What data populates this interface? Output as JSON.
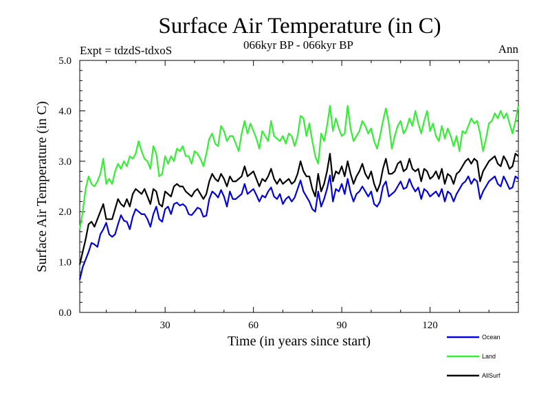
{
  "chart_data": {
    "type": "line",
    "title": "Surface Air Temperature (in C)",
    "subtitle": "066kyr BP - 066kyr BP",
    "expt_label": "Expt = tdzdS-tdxoS",
    "season": "Ann",
    "xlabel": "Time (in years since start)",
    "ylabel": "Surface Air Temperature (in C)",
    "xlim": [
      1,
      150
    ],
    "ylim": [
      0,
      5
    ],
    "xticks": [
      30,
      60,
      90,
      120
    ],
    "yticks": [
      0.0,
      1.0,
      2.0,
      3.0,
      4.0,
      5.0
    ],
    "ytick_labels": [
      "0.0",
      "1.0",
      "2.0",
      "3.0",
      "4.0",
      "5.0"
    ],
    "legend_position": "bottom-right",
    "series": [
      {
        "name": "Ocean",
        "color": "#0000dd",
        "values": [
          0.65,
          0.9,
          1.05,
          1.2,
          1.38,
          1.35,
          1.3,
          1.55,
          1.65,
          1.78,
          1.55,
          1.5,
          1.55,
          1.75,
          1.93,
          1.82,
          1.8,
          1.65,
          1.9,
          2.05,
          2.0,
          1.95,
          1.95,
          1.85,
          1.7,
          1.95,
          2.1,
          1.85,
          1.8,
          2.05,
          2.1,
          1.95,
          2.15,
          2.18,
          2.12,
          2.15,
          2.1,
          1.95,
          1.93,
          2.0,
          2.08,
          2.05,
          1.9,
          1.92,
          2.25,
          2.4,
          2.35,
          2.28,
          2.43,
          2.3,
          2.1,
          2.4,
          2.25,
          2.25,
          2.3,
          2.35,
          2.55,
          2.35,
          2.4,
          2.45,
          2.33,
          2.2,
          2.32,
          2.28,
          2.4,
          2.48,
          2.3,
          2.25,
          2.35,
          2.15,
          2.25,
          2.3,
          2.2,
          2.28,
          2.45,
          2.62,
          2.4,
          2.3,
          2.2,
          2.05,
          2.0,
          2.4,
          2.1,
          2.25,
          2.45,
          2.72,
          2.2,
          2.45,
          2.4,
          2.55,
          2.35,
          2.65,
          2.38,
          2.2,
          2.35,
          2.4,
          2.5,
          2.4,
          2.3,
          2.4,
          2.15,
          2.1,
          2.2,
          2.5,
          2.6,
          2.3,
          2.35,
          2.4,
          2.5,
          2.6,
          2.45,
          2.48,
          2.65,
          2.5,
          2.4,
          2.48,
          2.25,
          2.45,
          2.4,
          2.3,
          2.35,
          2.4,
          2.3,
          2.45,
          2.2,
          2.4,
          2.35,
          2.2,
          2.35,
          2.45,
          2.55,
          2.6,
          2.7,
          2.55,
          2.65,
          2.6,
          2.25,
          2.4,
          2.5,
          2.6,
          2.65,
          2.7,
          2.55,
          2.5,
          2.7,
          2.58,
          2.45,
          2.48,
          2.7,
          2.65
        ]
      },
      {
        "name": "Land",
        "color": "#33ee33",
        "values": [
          1.65,
          2.0,
          2.45,
          2.7,
          2.55,
          2.5,
          2.6,
          2.75,
          3.05,
          2.55,
          2.65,
          2.55,
          2.8,
          2.95,
          2.85,
          3.0,
          2.9,
          3.1,
          3.05,
          3.15,
          3.4,
          3.2,
          3.05,
          3.0,
          2.85,
          3.3,
          3.15,
          2.7,
          2.75,
          3.1,
          2.95,
          3.1,
          3.0,
          3.25,
          3.2,
          3.3,
          3.1,
          3.1,
          2.95,
          3.2,
          3.15,
          3.05,
          2.9,
          3.15,
          3.45,
          3.55,
          3.35,
          3.3,
          3.7,
          3.6,
          3.4,
          3.5,
          3.5,
          3.35,
          3.2,
          3.55,
          3.8,
          3.55,
          3.75,
          3.6,
          3.45,
          3.25,
          3.6,
          3.5,
          3.4,
          3.8,
          3.5,
          3.45,
          3.4,
          3.5,
          3.35,
          3.55,
          3.5,
          3.3,
          3.5,
          3.9,
          3.85,
          3.5,
          3.75,
          3.4,
          3.1,
          2.95,
          3.55,
          3.4,
          3.7,
          4.1,
          3.6,
          3.85,
          3.65,
          3.5,
          3.55,
          4.1,
          3.65,
          3.4,
          3.5,
          3.6,
          3.8,
          3.7,
          3.55,
          3.65,
          3.4,
          3.25,
          3.5,
          3.8,
          4.05,
          3.75,
          3.25,
          3.5,
          3.7,
          3.8,
          3.55,
          3.65,
          3.85,
          3.7,
          4.0,
          3.75,
          3.55,
          3.8,
          4.0,
          3.6,
          3.75,
          3.5,
          3.4,
          3.7,
          3.45,
          3.65,
          3.5,
          3.3,
          3.5,
          3.2,
          3.6,
          3.55,
          3.7,
          3.85,
          3.75,
          3.8,
          3.55,
          3.2,
          3.45,
          3.75,
          3.8,
          3.95,
          3.85,
          4.0,
          3.85,
          3.95,
          3.75,
          3.55,
          3.8,
          4.1
        ]
      },
      {
        "name": "AllSurf",
        "color": "#000000",
        "values": [
          0.95,
          1.2,
          1.45,
          1.75,
          1.8,
          1.7,
          1.85,
          2.0,
          2.15,
          1.85,
          1.85,
          1.85,
          2.05,
          2.25,
          2.15,
          2.1,
          2.25,
          2.1,
          2.35,
          2.45,
          2.4,
          2.35,
          2.45,
          2.3,
          2.15,
          2.45,
          2.4,
          2.15,
          2.1,
          2.4,
          2.35,
          2.3,
          2.5,
          2.55,
          2.5,
          2.5,
          2.4,
          2.35,
          2.3,
          2.4,
          2.45,
          2.35,
          2.25,
          2.35,
          2.6,
          2.75,
          2.65,
          2.6,
          2.75,
          2.65,
          2.5,
          2.7,
          2.6,
          2.6,
          2.65,
          2.7,
          2.9,
          2.7,
          2.75,
          2.8,
          2.65,
          2.5,
          2.65,
          2.6,
          2.7,
          2.85,
          2.65,
          2.55,
          2.65,
          2.55,
          2.6,
          2.65,
          2.55,
          2.6,
          2.75,
          3.0,
          2.8,
          2.7,
          2.7,
          2.45,
          2.3,
          2.75,
          2.4,
          2.55,
          2.8,
          3.15,
          2.6,
          2.8,
          2.75,
          2.9,
          2.7,
          3.0,
          2.75,
          2.55,
          2.7,
          2.8,
          2.95,
          2.75,
          2.65,
          2.8,
          2.55,
          2.4,
          2.55,
          2.85,
          3.05,
          2.75,
          2.75,
          2.8,
          2.95,
          3.0,
          2.8,
          2.85,
          3.05,
          2.85,
          2.8,
          2.85,
          2.6,
          2.85,
          2.8,
          2.65,
          2.7,
          2.8,
          2.65,
          2.85,
          2.55,
          2.75,
          2.7,
          2.55,
          2.75,
          2.8,
          2.9,
          3.0,
          3.05,
          2.95,
          3.05,
          3.0,
          2.6,
          2.8,
          2.9,
          3.0,
          3.05,
          3.1,
          2.95,
          2.9,
          3.1,
          3.0,
          2.85,
          2.9,
          3.15,
          3.1
        ]
      }
    ]
  }
}
